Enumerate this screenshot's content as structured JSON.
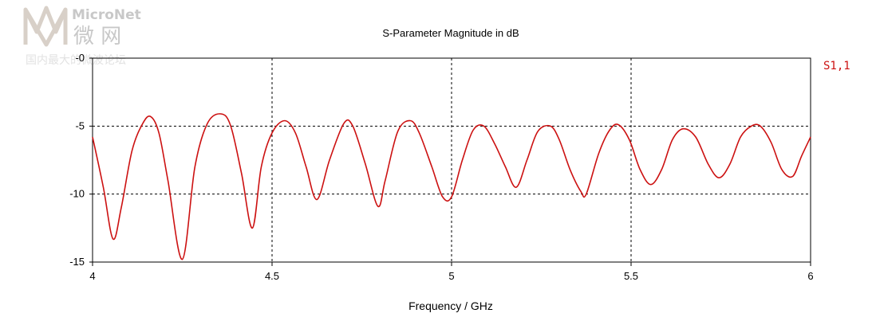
{
  "watermark": {
    "name": "MicroNet",
    "name_cn": "微 网",
    "tagline": "国内最大的微波论坛"
  },
  "chart_data": {
    "type": "line",
    "title": "S-Parameter Magnitude in dB",
    "xlabel": "Frequency / GHz",
    "ylabel": "",
    "xlim": [
      4,
      6
    ],
    "ylim": [
      -15,
      0
    ],
    "xticks": [
      4,
      4.5,
      5,
      5.5,
      6
    ],
    "xtick_labels": [
      "4",
      "4.5",
      "5",
      "5.5",
      "6"
    ],
    "yticks": [
      0,
      -5,
      -10,
      -15
    ],
    "ytick_labels": [
      "-0",
      "-5",
      "-10",
      "-15"
    ],
    "grid": true,
    "legend_position": "right",
    "colors": {
      "series": "#cc1111",
      "grid": "#000000",
      "axis": "#000000",
      "watermark": "#c8c8c8"
    },
    "series": [
      {
        "name": "S1,1",
        "x": [
          4.0,
          4.03,
          4.057,
          4.08,
          4.11,
          4.14,
          4.162,
          4.185,
          4.21,
          4.25,
          4.285,
          4.32,
          4.358,
          4.385,
          4.415,
          4.445,
          4.47,
          4.5,
          4.535,
          4.565,
          4.595,
          4.625,
          4.66,
          4.7,
          4.725,
          4.76,
          4.795,
          4.815,
          4.85,
          4.885,
          4.91,
          4.945,
          4.975,
          5.0,
          5.03,
          5.06,
          5.09,
          5.12,
          5.15,
          5.18,
          5.21,
          5.24,
          5.275,
          5.3,
          5.33,
          5.36,
          5.375,
          5.41,
          5.44,
          5.465,
          5.495,
          5.525,
          5.555,
          5.585,
          5.615,
          5.645,
          5.68,
          5.715,
          5.745,
          5.775,
          5.805,
          5.835,
          5.86,
          5.89,
          5.92,
          5.95,
          5.975,
          6.0
        ],
        "y": [
          -5.8,
          -9.5,
          -13.3,
          -11.0,
          -6.8,
          -4.8,
          -4.3,
          -5.5,
          -9.0,
          -14.8,
          -8.0,
          -4.8,
          -4.1,
          -5.0,
          -8.5,
          -12.5,
          -8.0,
          -5.5,
          -4.6,
          -5.5,
          -8.0,
          -10.4,
          -7.5,
          -4.8,
          -5.0,
          -7.8,
          -10.9,
          -9.0,
          -5.4,
          -4.6,
          -5.5,
          -8.0,
          -10.2,
          -10.2,
          -7.5,
          -5.3,
          -5.0,
          -6.3,
          -8.0,
          -9.5,
          -7.5,
          -5.4,
          -5.0,
          -6.0,
          -8.2,
          -9.8,
          -10.0,
          -7.0,
          -5.3,
          -4.9,
          -6.0,
          -8.2,
          -9.3,
          -8.2,
          -6.0,
          -5.2,
          -5.8,
          -7.8,
          -8.8,
          -7.8,
          -5.8,
          -5.0,
          -5.0,
          -6.2,
          -8.2,
          -8.7,
          -7.2,
          -5.8
        ]
      }
    ]
  }
}
